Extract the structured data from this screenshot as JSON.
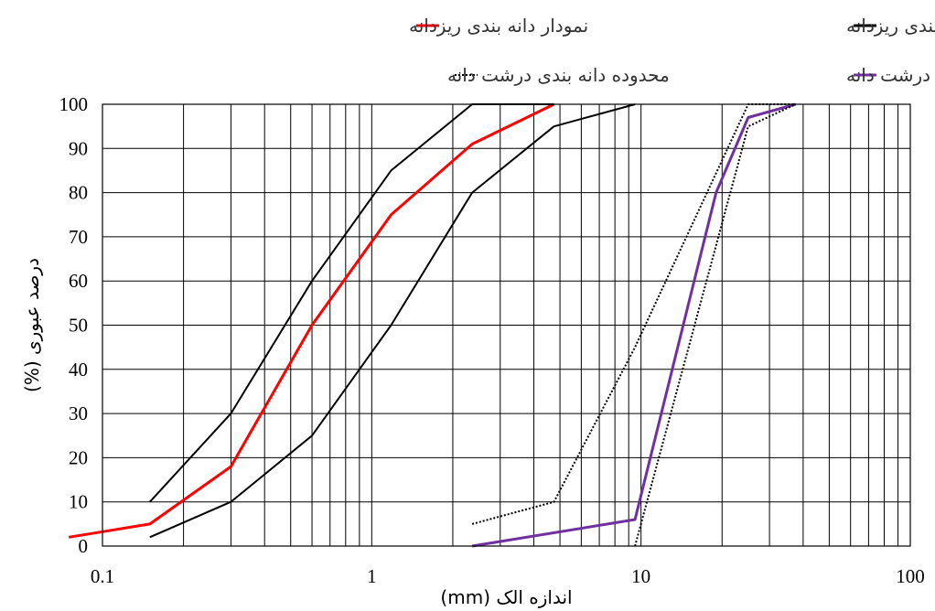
{
  "chart_data": {
    "type": "line",
    "x_scale": "log",
    "xlim": [
      0.1,
      100
    ],
    "ylim": [
      0,
      100
    ],
    "grid": true,
    "legend_position": "top",
    "xlabel": "اندازه الک (mm)",
    "ylabel": "درصد عبوری (%)",
    "x_tick_labels": [
      "0.1",
      "1",
      "10",
      "100"
    ],
    "y_tick_labels": [
      "0",
      "10",
      "20",
      "30",
      "40",
      "50",
      "60",
      "70",
      "80",
      "90",
      "100"
    ],
    "series": [
      {
        "name": "نمودار دانه بندی ریزدانه",
        "color": "#ff0000",
        "style": "solid",
        "width": 3,
        "x": [
          0.075,
          0.15,
          0.3,
          0.6,
          1.18,
          2.36,
          4.75
        ],
        "y": [
          2,
          5,
          18,
          50,
          75,
          91,
          100
        ]
      },
      {
        "name": "محدوده دانه بندی ریزدانه",
        "color": "#000000",
        "style": "solid",
        "width": 2,
        "x": [
          0.15,
          0.3,
          0.6,
          1.18,
          2.36,
          4.75
        ],
        "y": [
          10,
          30,
          60,
          85,
          100,
          100
        ]
      },
      {
        "name": "",
        "color": "#000000",
        "style": "solid",
        "width": 2,
        "x": [
          0.15,
          0.3,
          0.6,
          1.18,
          2.36,
          4.75,
          9.5
        ],
        "y": [
          2,
          10,
          25,
          50,
          80,
          95,
          100
        ]
      },
      {
        "name": "نمودار دانه بندی درشت دانه",
        "color": "#7030a0",
        "style": "solid",
        "width": 3,
        "x": [
          2.36,
          9.5,
          19,
          25,
          37.5
        ],
        "y": [
          0,
          6,
          80,
          97,
          100
        ]
      },
      {
        "name": "محدوده دانه بندی درشت دانه",
        "color": "#000000",
        "style": "dotted",
        "width": 2,
        "x": [
          2.36,
          4.75,
          9.5,
          25,
          37.5
        ],
        "y": [
          5,
          10,
          45,
          100,
          100
        ]
      },
      {
        "name": "",
        "color": "#000000",
        "style": "dotted",
        "width": 2,
        "x": [
          9.5,
          25,
          37.5
        ],
        "y": [
          0,
          95,
          100
        ]
      }
    ],
    "legend": [
      {
        "label": "نمودار دانه بندی ریزدانه",
        "color": "#ff0000",
        "style": "solid"
      },
      {
        "label": "محدوده دانه بندی ریزدانه",
        "color": "#000000",
        "style": "solid"
      },
      {
        "label": "محدوده دانه بندی درشت دانه",
        "color": "#000000",
        "style": "dotted"
      },
      {
        "label": "نمودار دانه بندی درشت دانه",
        "color": "#7030a0",
        "style": "solid"
      }
    ]
  }
}
